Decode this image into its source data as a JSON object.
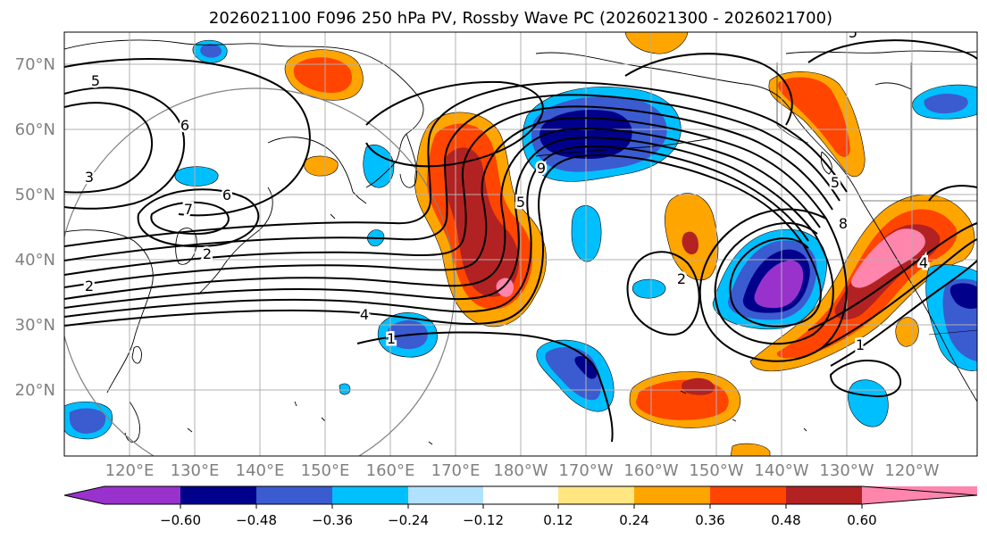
{
  "title": "2026021100 F096 250 hPa PV, Rossby Wave PC (2026021300 - 2026021700)",
  "lat_labels": [
    "70°N",
    "60°N",
    "50°N",
    "40°N",
    "30°N",
    "20°N"
  ],
  "lon_labels": [
    "120°E",
    "130°E",
    "140°E",
    "150°E",
    "160°E",
    "170°E",
    "180°W",
    "170°W",
    "160°W",
    "150°W",
    "140°W",
    "130°W",
    "120°W"
  ],
  "colorbar": {
    "labels": [
      "−0.60",
      "−0.48",
      "−0.36",
      "−0.24",
      "−0.12",
      "0.12",
      "0.24",
      "0.36",
      "0.48",
      "0.60"
    ],
    "colors": [
      "#9932cc",
      "#00008b",
      "#3b5bd1",
      "#00bfff",
      "#b0e2ff",
      "#ffffff",
      "#ffe680",
      "#ffa500",
      "#ff4500",
      "#b22222",
      "#ff85ad"
    ]
  },
  "contour_labels": [
    "5",
    "6",
    "3",
    "6",
    "7",
    "2",
    "2",
    "4",
    "1",
    "9",
    "5",
    "5",
    "8",
    "2",
    "1",
    "4",
    "5"
  ],
  "colors": {
    "land": "#000000",
    "grid": "#b0b0b0",
    "circle": "#808080"
  }
}
